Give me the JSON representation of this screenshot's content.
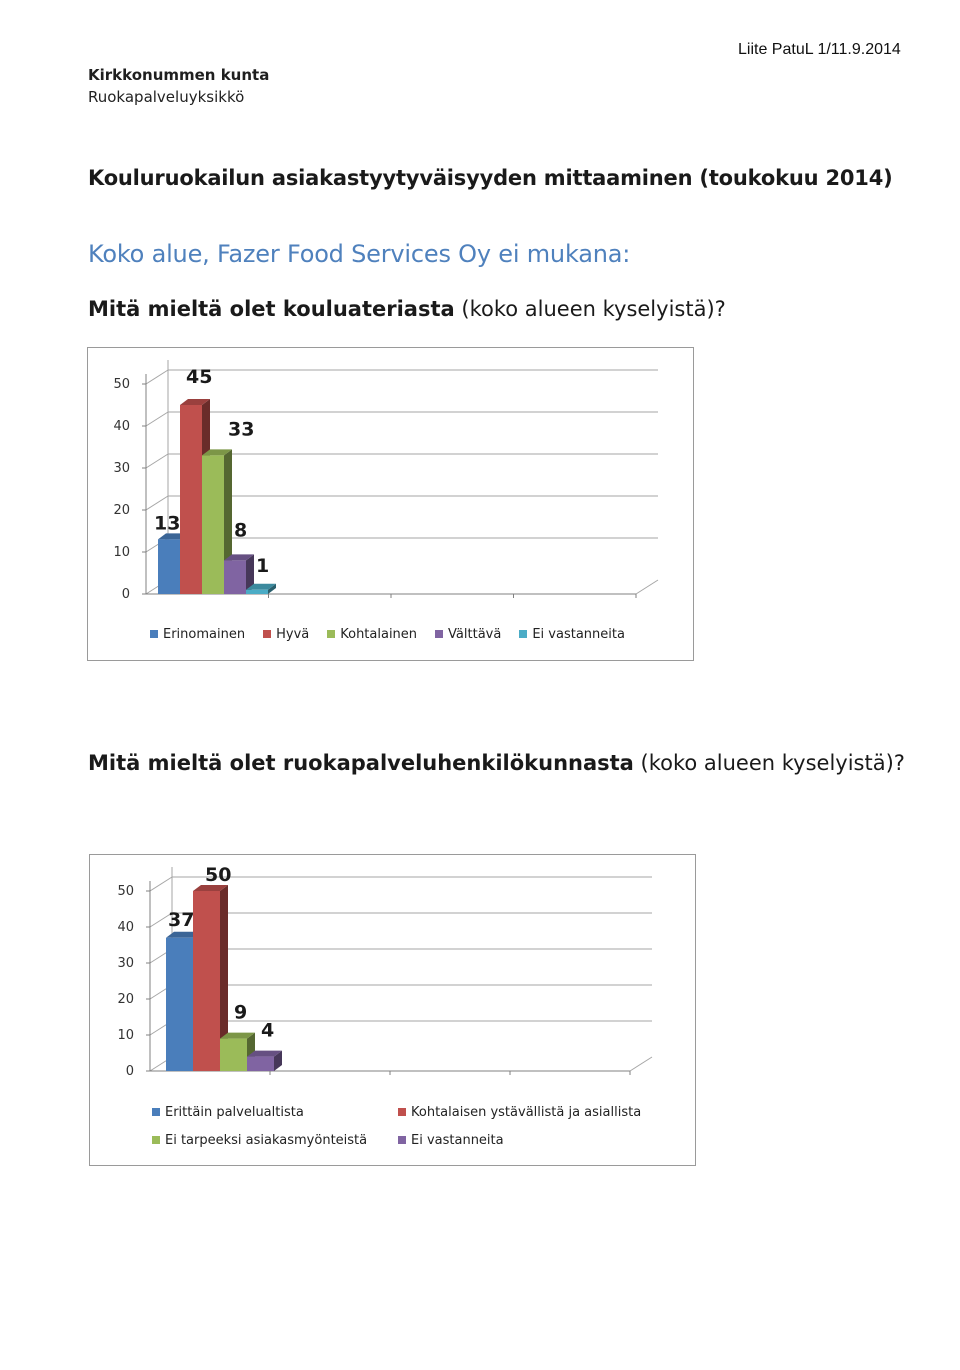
{
  "header": {
    "org_name": "Kirkkonummen kunta",
    "org_unit": "Ruokapalveluyksikkö",
    "attachment": "Liite PatuL 1/11.9.2014"
  },
  "main_title": "Kouluruokailun asiakastyytyväisyyden mittaaminen (toukokuu 2014)",
  "subtitle": "Koko alue, Fazer Food Services Oy ei mukana:",
  "q1": {
    "bold": "Mitä mieltä olet kouluateriasta",
    "rest": " (koko alueen kyselyistä)?"
  },
  "q2": {
    "bold": "Mitä mieltä olet ruokapalveluhenkilökunnasta",
    "rest": " (koko alueen kyselyistä)?"
  },
  "chart_data": [
    {
      "type": "bar",
      "categories": [
        "Erinomainen",
        "Hyvä",
        "Kohtalainen",
        "Välttävä",
        "Ei vastanneita"
      ],
      "values": [
        13,
        45,
        33,
        8,
        1
      ],
      "value_labels": [
        "13",
        "45",
        "33",
        "8",
        "1"
      ],
      "colors": [
        "#4a7ebb",
        "#c0504d",
        "#9bbb59",
        "#8064a2",
        "#4bacc6"
      ],
      "yticks": [
        "0",
        "10",
        "20",
        "30",
        "40",
        "50"
      ],
      "ylim": [
        0,
        50
      ],
      "grid": true,
      "legend_position": "bottom"
    },
    {
      "type": "bar",
      "categories": [
        "Erittäin palvelualtista",
        "Kohtalaisen ystävällistä ja asiallista",
        "Ei tarpeeksi asiakasmyönteistä",
        "Ei vastanneita"
      ],
      "values": [
        37,
        50,
        9,
        4
      ],
      "value_labels": [
        "37",
        "50",
        "9",
        "4"
      ],
      "colors": [
        "#4a7ebb",
        "#c0504d",
        "#9bbb59",
        "#8064a2"
      ],
      "yticks": [
        "0",
        "10",
        "20",
        "30",
        "40",
        "50"
      ],
      "ylim": [
        0,
        50
      ],
      "grid": true,
      "legend_position": "bottom"
    }
  ]
}
